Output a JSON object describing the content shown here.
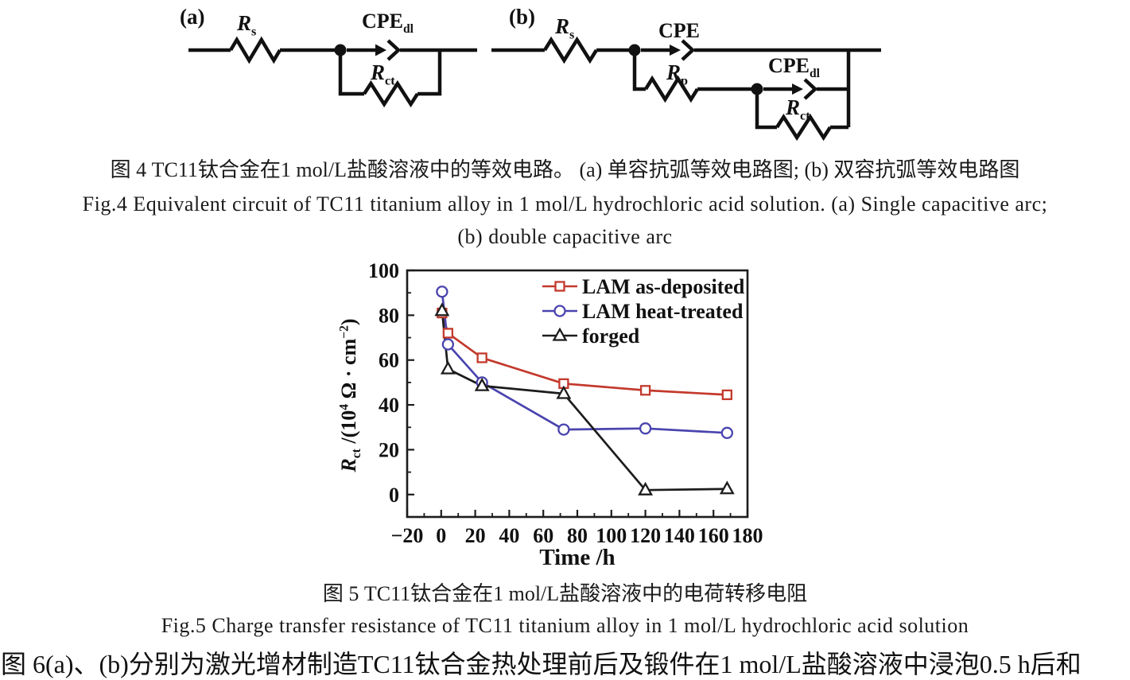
{
  "figure4": {
    "circuit_a": {
      "label": "(a)",
      "rs": {
        "base": "R",
        "sub": "s"
      },
      "cpe": {
        "base": "CPE",
        "sub": "dl"
      },
      "rct": {
        "base": "R",
        "sub": "ct"
      }
    },
    "circuit_b": {
      "label": "(b)",
      "rs": {
        "base": "R",
        "sub": "s"
      },
      "cpe": {
        "base": "CPE",
        "sub": ""
      },
      "rp": {
        "base": "R",
        "sub": "p"
      },
      "cpedl": {
        "base": "CPE",
        "sub": "dl"
      },
      "rct": {
        "base": "R",
        "sub": "ct"
      }
    },
    "caption_zh": "图 4  TC11钛合金在1 mol/L盐酸溶液中的等效电路。 (a) 单容抗弧等效电路图; (b) 双容抗弧等效电路图",
    "caption_en_line1": "Fig.4  Equivalent circuit of TC11 titanium alloy in 1 mol/L hydrochloric acid solution. (a) Single capacitive arc;",
    "caption_en_line2": "(b) double capacitive arc"
  },
  "figure5": {
    "caption_zh": "图 5  TC11钛合金在1 mol/L盐酸溶液中的电荷转移电阻",
    "caption_en": "Fig.5  Charge transfer resistance of TC11 titanium alloy in 1 mol/L hydrochloric acid solution"
  },
  "body_text": "图 6(a)、(b)分别为激光增材制造TC11钛合金热处理前后及锻件在1 mol/L盐酸溶液中浸泡0.5 h后和",
  "chart_data": {
    "type": "line",
    "title": "",
    "xlabel": "Time /h",
    "ylabel": {
      "base": "R",
      "base_sub": "ct",
      "unit_pre": " /(10",
      "exp1": "4",
      "unit_mid": " Ω · cm",
      "exp2": "−2",
      "unit_end": ")"
    },
    "xlim": [
      -20,
      180
    ],
    "ylim": [
      -10,
      100
    ],
    "xticks": [
      -20,
      0,
      20,
      40,
      60,
      80,
      100,
      120,
      140,
      160,
      180
    ],
    "yticks": [
      0,
      20,
      40,
      60,
      80,
      100
    ],
    "minor_step": 10,
    "grid": false,
    "legend_position": "top-right",
    "x": [
      0.5,
      4,
      24,
      72,
      120,
      168
    ],
    "series": [
      {
        "name": "LAM as-deposited",
        "color": "#c3392c",
        "marker": "square",
        "values": [
          81,
          72,
          61,
          49.5,
          46.5,
          44.5
        ]
      },
      {
        "name": "LAM heat-treated",
        "color": "#4a44ae",
        "marker": "circle",
        "values": [
          90.5,
          67,
          50,
          29,
          29.5,
          27.5
        ]
      },
      {
        "name": "forged",
        "color": "#1c1c1c",
        "marker": "triangle",
        "values": [
          82,
          56,
          48.5,
          45,
          2,
          2.5
        ]
      }
    ]
  }
}
